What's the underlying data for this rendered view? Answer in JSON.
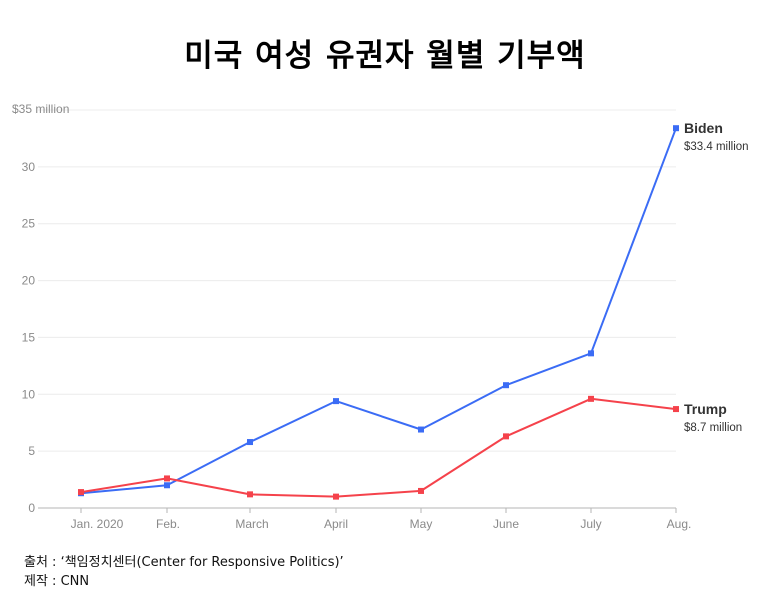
{
  "title": "미국 여성 유권자 월별 기부액",
  "footer": {
    "source": "출처 : ‘책임정치센터(Center for Responsive Politics)’",
    "credit": "제작 : CNN"
  },
  "chart_data": {
    "type": "line",
    "title": "미국 여성 유권자 월별 기부액",
    "categories": [
      "Jan. 2020",
      "Feb.",
      "March",
      "April",
      "May",
      "June",
      "July",
      "Aug."
    ],
    "y_tick_labels": [
      "0",
      "5",
      "10",
      "15",
      "20",
      "25",
      "30",
      "$35 million"
    ],
    "y_ticks": [
      0,
      5,
      10,
      15,
      20,
      25,
      30,
      35
    ],
    "ylim": [
      0,
      35
    ],
    "grid": true,
    "series": [
      {
        "name": "Biden",
        "end_label": "$33.4 million",
        "color": "#3b6cf5",
        "values": [
          1.3,
          2.0,
          5.8,
          9.4,
          6.9,
          10.8,
          13.6,
          33.4
        ]
      },
      {
        "name": "Trump",
        "end_label": "$8.7 million",
        "color": "#f5424b",
        "values": [
          1.4,
          2.6,
          1.2,
          1.0,
          1.5,
          6.3,
          9.6,
          8.7
        ]
      }
    ]
  }
}
